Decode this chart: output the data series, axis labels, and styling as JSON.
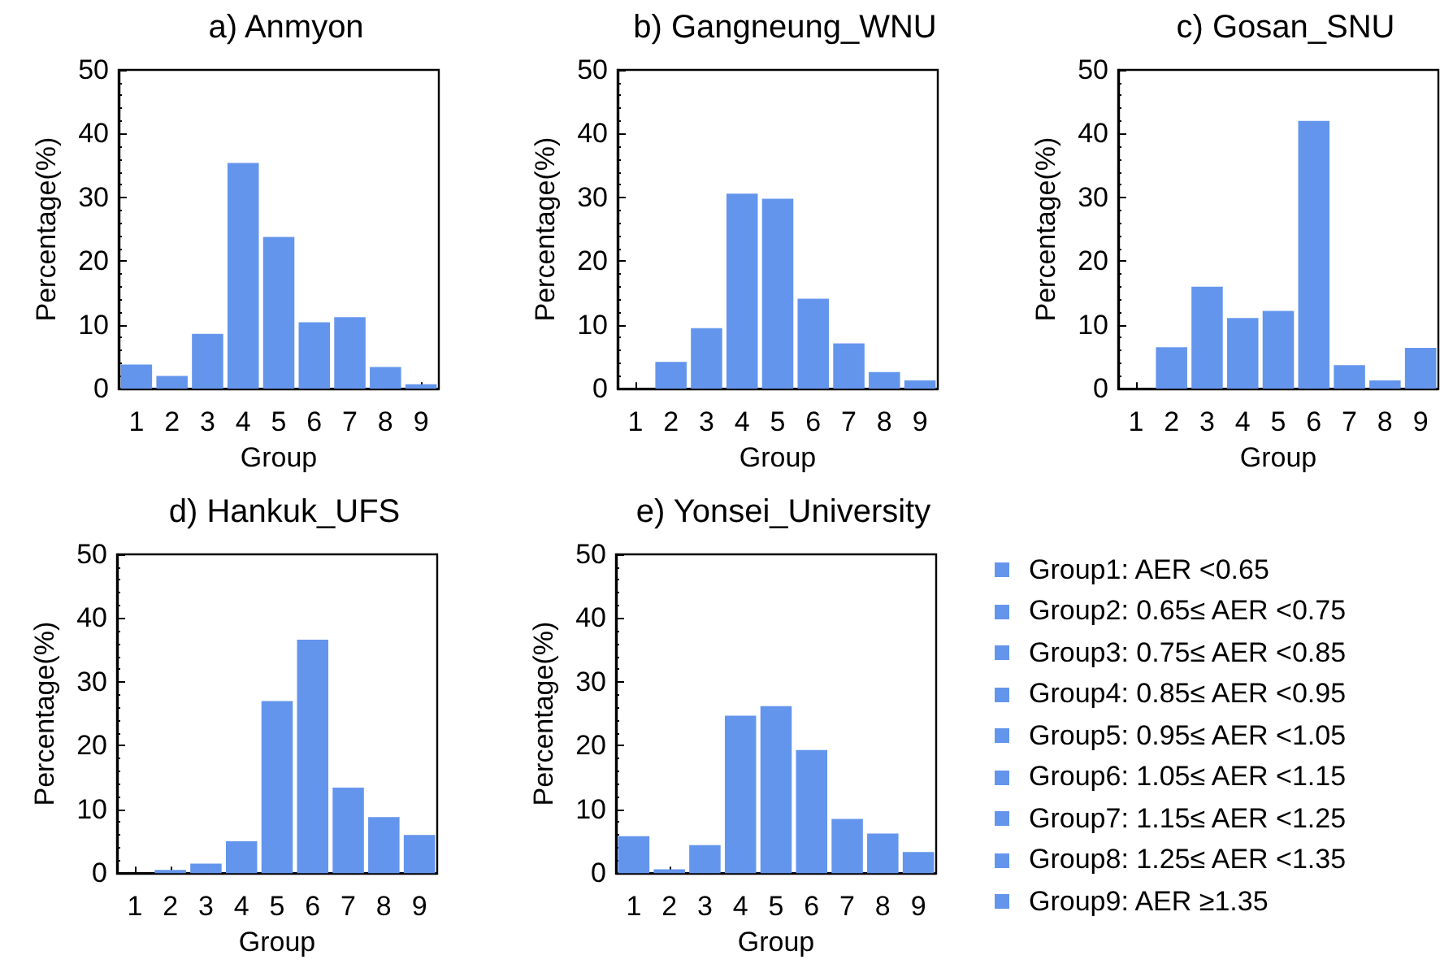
{
  "chart_data": [
    {
      "type": "bar",
      "title": "a) Anmyon",
      "xlabel": "Group",
      "ylabel": "Percentage(%)",
      "categories": [
        "1",
        "2",
        "3",
        "4",
        "5",
        "6",
        "7",
        "8",
        "9"
      ],
      "values": [
        3.8,
        2.0,
        8.6,
        35.4,
        23.8,
        10.4,
        11.2,
        3.4,
        0.7
      ],
      "color": "#6495ed",
      "ylim": [
        0,
        50
      ],
      "yticks": [
        0,
        10,
        20,
        30,
        40,
        50
      ],
      "grid": false
    },
    {
      "type": "bar",
      "title": "b) Gangneung_WNU",
      "xlabel": "Group",
      "ylabel": "Percentage(%)",
      "categories": [
        "1",
        "2",
        "3",
        "4",
        "5",
        "6",
        "7",
        "8",
        "9"
      ],
      "values": [
        0,
        4.2,
        9.5,
        30.6,
        29.8,
        14.1,
        7.1,
        2.6,
        1.3
      ],
      "color": "#6495ed",
      "ylim": [
        0,
        50
      ],
      "yticks": [
        0,
        10,
        20,
        30,
        40,
        50
      ],
      "grid": false
    },
    {
      "type": "bar",
      "title": "c) Gosan_SNU",
      "xlabel": "Group",
      "ylabel": "Percentage(%)",
      "categories": [
        "1",
        "2",
        "3",
        "4",
        "5",
        "6",
        "7",
        "8",
        "9"
      ],
      "values": [
        0,
        6.5,
        16.0,
        11.1,
        12.2,
        42.0,
        3.7,
        1.3,
        6.4
      ],
      "color": "#6495ed",
      "ylim": [
        0,
        50
      ],
      "yticks": [
        0,
        10,
        20,
        30,
        40,
        50
      ],
      "grid": false
    },
    {
      "type": "bar",
      "title": "d) Hankuk_UFS",
      "xlabel": "Group",
      "ylabel": "Percentage(%)",
      "categories": [
        "1",
        "2",
        "3",
        "4",
        "5",
        "6",
        "7",
        "8",
        "9"
      ],
      "values": [
        0,
        0.5,
        1.5,
        5.0,
        27.0,
        36.6,
        13.4,
        8.8,
        6.0
      ],
      "color": "#6495ed",
      "ylim": [
        0,
        50
      ],
      "yticks": [
        0,
        10,
        20,
        30,
        40,
        50
      ],
      "grid": false
    },
    {
      "type": "bar",
      "title": "e) Yonsei_University",
      "xlabel": "Group",
      "ylabel": "Percentage(%)",
      "categories": [
        "1",
        "2",
        "3",
        "4",
        "5",
        "6",
        "7",
        "8",
        "9"
      ],
      "values": [
        5.8,
        0.6,
        4.4,
        24.7,
        26.2,
        19.3,
        8.5,
        6.2,
        3.3
      ],
      "color": "#6495ed",
      "ylim": [
        0,
        50
      ],
      "yticks": [
        0,
        10,
        20,
        30,
        40,
        50
      ],
      "grid": false
    },
    {
      "type": "other",
      "annotations": [
        "Group1: AER <0.65",
        "Group2: 0.65≤ AER <0.75",
        "Group3: 0.75≤ AER <0.85",
        "Group4: 0.85≤ AER <0.95",
        "Group5: 0.95≤ AER <1.05",
        "Group6: 1.05≤ AER <1.15",
        "Group7: 1.15≤ AER <1.25",
        "Group8: 1.25≤ AER <1.35",
        "Group9: AER ≥1.35"
      ]
    }
  ]
}
